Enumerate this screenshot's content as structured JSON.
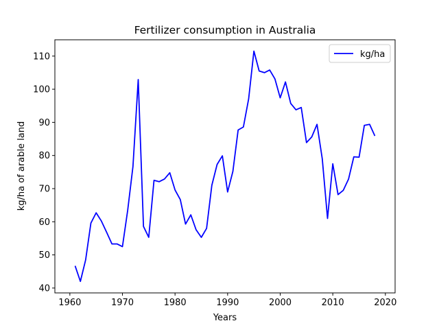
{
  "chart_data": {
    "type": "line",
    "title": "Fertilizer consumption in Australia",
    "xlabel": "Years",
    "ylabel": "kg/ha of arable land",
    "xlim": [
      1957.15,
      2021.85
    ],
    "ylim": [
      38.53,
      114.92
    ],
    "x_ticks": [
      1960,
      1970,
      1980,
      1990,
      2000,
      2010,
      2020
    ],
    "y_ticks": [
      40,
      50,
      60,
      70,
      80,
      90,
      100,
      110
    ],
    "grid": false,
    "legend_position": "top-right",
    "series": [
      {
        "name": "kg/ha",
        "color": "#0000ff",
        "x": [
          1961,
          1962,
          1963,
          1964,
          1965,
          1966,
          1967,
          1968,
          1969,
          1970,
          1971,
          1972,
          1973,
          1974,
          1975,
          1976,
          1977,
          1978,
          1979,
          1980,
          1981,
          1982,
          1983,
          1984,
          1985,
          1986,
          1987,
          1988,
          1989,
          1990,
          1991,
          1992,
          1993,
          1994,
          1995,
          1996,
          1997,
          1998,
          1999,
          2000,
          2001,
          2002,
          2003,
          2004,
          2005,
          2006,
          2007,
          2008,
          2009,
          2010,
          2011,
          2012,
          2013,
          2014,
          2015,
          2016,
          2017,
          2018
        ],
        "values": [
          46.7,
          42.0,
          48.5,
          59.6,
          62.7,
          60.2,
          56.8,
          53.3,
          53.3,
          52.5,
          63.5,
          76.7,
          102.9,
          58.6,
          55.3,
          72.5,
          72.1,
          72.9,
          74.8,
          69.6,
          66.7,
          59.3,
          62.1,
          57.6,
          55.3,
          58.0,
          71.0,
          77.3,
          79.9,
          69.0,
          75.2,
          87.7,
          88.6,
          97.1,
          111.5,
          105.5,
          105.0,
          105.8,
          103.1,
          97.4,
          102.2,
          95.7,
          93.8,
          94.5,
          83.9,
          85.6,
          89.4,
          79.0,
          61.0,
          77.5,
          68.2,
          69.5,
          72.9,
          79.6,
          79.5,
          89.1,
          89.4,
          85.9
        ]
      }
    ]
  }
}
